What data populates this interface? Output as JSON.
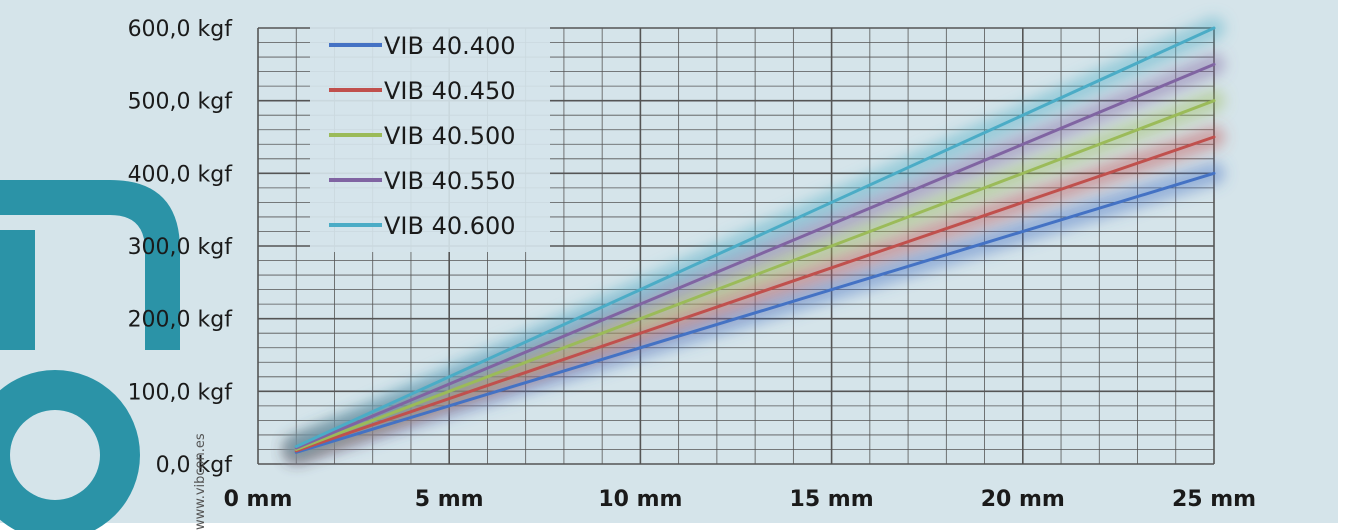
{
  "chart_data": {
    "type": "line",
    "x": [
      1,
      25
    ],
    "xlim": [
      0,
      25
    ],
    "ylim": [
      0,
      600
    ],
    "x_ticks": [
      0,
      5,
      10,
      15,
      20,
      25
    ],
    "x_tick_labels": [
      "0 mm",
      "5 mm",
      "10 mm",
      "15 mm",
      "20 mm",
      "25 mm"
    ],
    "y_ticks": [
      0,
      100,
      200,
      300,
      400,
      500,
      600
    ],
    "y_tick_labels": [
      "0,0 kgf",
      "100,0 kgf",
      "200,0 kgf",
      "300,0 kgf",
      "400,0 kgf",
      "500,0 kgf",
      "600,0 kgf"
    ],
    "grid": true,
    "minor_grid": true,
    "legend_position": "top-left",
    "series": [
      {
        "name": "VIB 40.400",
        "color": "#4472c4",
        "values": [
          16,
          400
        ]
      },
      {
        "name": "VIB 40.450",
        "color": "#c0504d",
        "values": [
          18,
          450
        ]
      },
      {
        "name": "VIB 40.500",
        "color": "#9bbb59",
        "values": [
          20,
          500
        ]
      },
      {
        "name": "VIB 40.550",
        "color": "#8064a2",
        "values": [
          22,
          550
        ]
      },
      {
        "name": "VIB 40.600",
        "color": "#4bacc6",
        "values": [
          24,
          600
        ]
      }
    ]
  },
  "colors": {
    "background": "#d5e4ea",
    "grid": "#555555",
    "logo": "#2b93a7"
  },
  "watermark": {
    "text": "www.vibcon.es",
    "logo_icon": "vibcon-logo-icon"
  }
}
